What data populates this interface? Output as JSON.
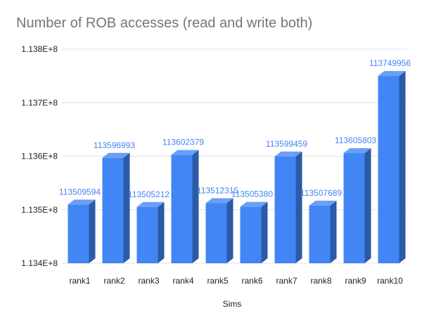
{
  "chart_data": {
    "type": "bar",
    "title": "Number of ROB accesses (read and write both)",
    "xlabel": "Sims",
    "ylabel": "",
    "categories": [
      "rank1",
      "rank2",
      "rank3",
      "rank4",
      "rank5",
      "rank6",
      "rank7",
      "rank8",
      "rank9",
      "rank10"
    ],
    "values": [
      113509594,
      113596993,
      113505212,
      113602379,
      113512315,
      113505380,
      113599459,
      113507689,
      113605803,
      113749956
    ],
    "data_labels": [
      "113509594",
      "113596993",
      "113505212",
      "113602379",
      "113512315",
      "113505380",
      "113599459",
      "113507689",
      "113605803",
      "113749956"
    ],
    "ylim": [
      113400000,
      113800000
    ],
    "yticks": [
      113400000,
      113500000,
      113600000,
      113700000,
      113800000
    ],
    "ytick_labels": [
      "1.134E+8",
      "1.135E+8",
      "1.136E+8",
      "1.137E+8",
      "1.138E+8"
    ],
    "grid": true,
    "style": "3d-column",
    "colors": {
      "bar_front": "#4285f4",
      "bar_side": "#2b5aa6",
      "bar_top": "#6a9ff7",
      "data_label": "#4285f4",
      "grid": "#e0e0e0",
      "title": "#757575"
    }
  }
}
